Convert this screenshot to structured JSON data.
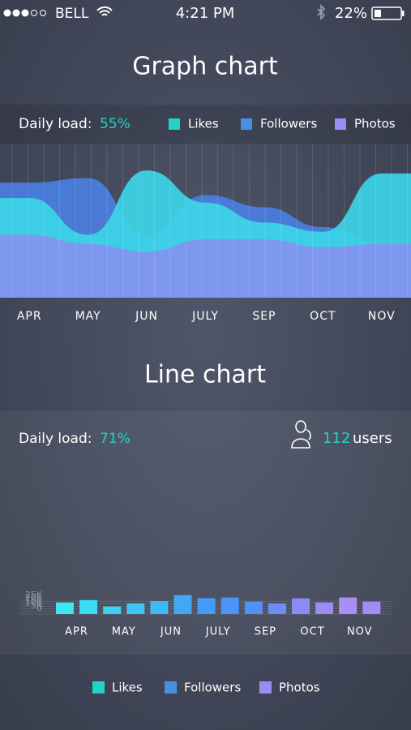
{
  "status_bar": {
    "carrier": "BELL",
    "time": "4:21 PM",
    "battery": "22%"
  },
  "chart_data": [
    {
      "type": "area",
      "title": "Graph chart",
      "daily_load": {
        "label": "Daily load:",
        "value": "55%"
      },
      "categories": [
        "APR",
        "MAY",
        "JUN",
        "JULY",
        "SEP",
        "OCT",
        "NOV"
      ],
      "ylim": [
        0,
        100
      ],
      "series": [
        {
          "name": "Likes",
          "color": "#22d3c5",
          "fill": "#3dd5e8",
          "values": [
            65,
            41,
            83,
            62,
            49,
            43,
            81
          ]
        },
        {
          "name": "Followers",
          "color": "#4a90e2",
          "fill": "#4a7fe0",
          "values": [
            75,
            78,
            41,
            67,
            59,
            46,
            35
          ]
        },
        {
          "name": "Photos",
          "color": "#9b8cf2",
          "fill": "#8b8ef0",
          "values": [
            41,
            35,
            30,
            38,
            38,
            33,
            35
          ]
        }
      ]
    },
    {
      "type": "bar",
      "title": "Line chart",
      "daily_load": {
        "label": "Daily load:",
        "value": "71%"
      },
      "users": {
        "count": "112",
        "label": "users"
      },
      "categories": [
        null,
        "APR",
        null,
        "MAY",
        null,
        "JUN",
        null,
        "JULY",
        null,
        "SEP",
        null,
        "OCT",
        null,
        "NOV"
      ],
      "values": [
        11500,
        16100,
        3500,
        9500,
        14100,
        25800,
        19800,
        21200,
        13100,
        9500,
        19500,
        11500,
        21200,
        13100
      ],
      "colors": [
        "#3ee6f2",
        "#3cdcf3",
        "#3cd2f4",
        "#3dc6f5",
        "#3eb8f6",
        "#40a8f7",
        "#449cf7",
        "#4a95f6",
        "#5290f5",
        "#6a8ff4",
        "#8a8cf3",
        "#9c8cf4",
        "#ac8cf5",
        "#a08cf2"
      ],
      "ylim": [
        0,
        26600
      ],
      "yticks": [
        0,
        {
          "value": 5000,
          "label": "5K"
        },
        {
          "value": 10000,
          "label": "10K"
        },
        {
          "value": 15000,
          "label": "15K"
        },
        {
          "value": 20000,
          "label": "20K"
        },
        {
          "value": 25000,
          "label": "25K"
        }
      ],
      "grid": true,
      "legend": [
        {
          "name": "Likes",
          "color": "#22d3c5"
        },
        {
          "name": "Followers",
          "color": "#4a90e2"
        },
        {
          "name": "Photos",
          "color": "#9b8cf2"
        }
      ]
    }
  ]
}
